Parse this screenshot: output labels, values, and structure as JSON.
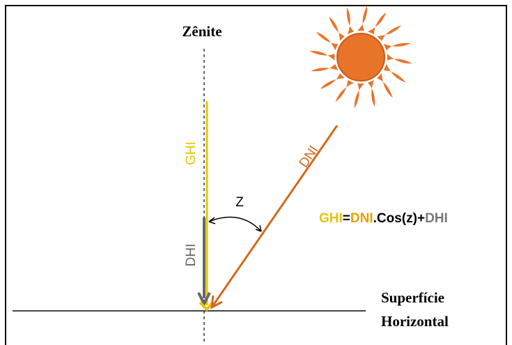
{
  "labels": {
    "zenith": "Zênite",
    "ghi": "GHI",
    "dhi": "DHI",
    "dni": "DNI",
    "angle": "Z"
  },
  "formula": [
    "GHI",
    "=",
    "DNI",
    ".Cos(z)+",
    "DHI"
  ],
  "surface": [
    "Superfície",
    "Horizontal"
  ]
}
